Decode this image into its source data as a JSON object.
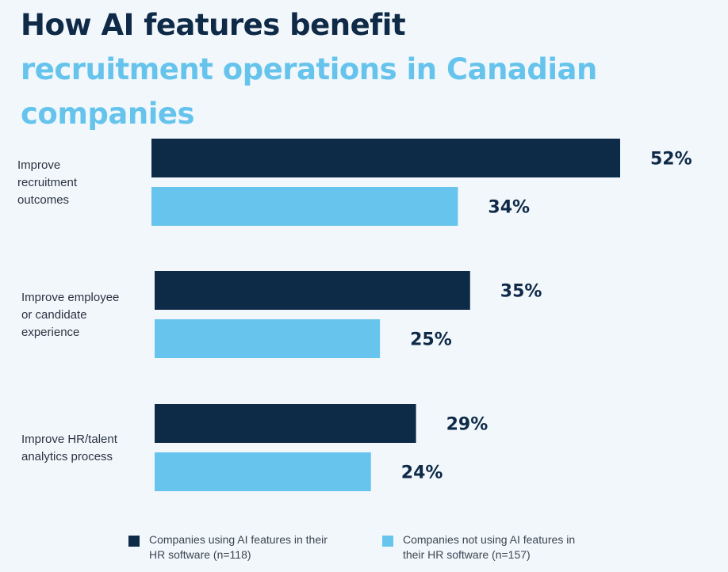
{
  "title": {
    "line1": "How AI features benefit",
    "line2": "recruitment operations in Canadian companies"
  },
  "colors": {
    "dark": "#0d2b47",
    "light": "#67c5ed",
    "title_dark": "#0e2a47",
    "title_light": "#66c4ec"
  },
  "legend": [
    {
      "label": "Companies using AI features in their HR software (n=118)",
      "color": "#0d2b47"
    },
    {
      "label": "Companies not using AI features in their HR software (n=157)",
      "color": "#67c5ed"
    }
  ],
  "chart_data": {
    "type": "bar",
    "orientation": "horizontal",
    "categories": [
      "Improve recruitment outcomes",
      "Improve employee or candidate experience",
      "Improve HR/talent analytics process"
    ],
    "category_lines": [
      [
        "Improve",
        "recruitment",
        "outcomes"
      ],
      [
        "Improve employee",
        "or candidate",
        "experience"
      ],
      [
        "Improve HR/talent",
        "analytics process"
      ]
    ],
    "series": [
      {
        "name": "Companies using AI features in their HR software (n=118)",
        "values": [
          52,
          35,
          29
        ],
        "labels": [
          "52%",
          "35%",
          "29%"
        ]
      },
      {
        "name": "Companies not using AI features in their HR software (n=157)",
        "values": [
          34,
          25,
          24
        ],
        "labels": [
          "34%",
          "25%",
          "24%"
        ]
      }
    ],
    "unit": "%",
    "xlim": [
      0,
      52
    ],
    "grid": false,
    "legend_position": "bottom"
  }
}
